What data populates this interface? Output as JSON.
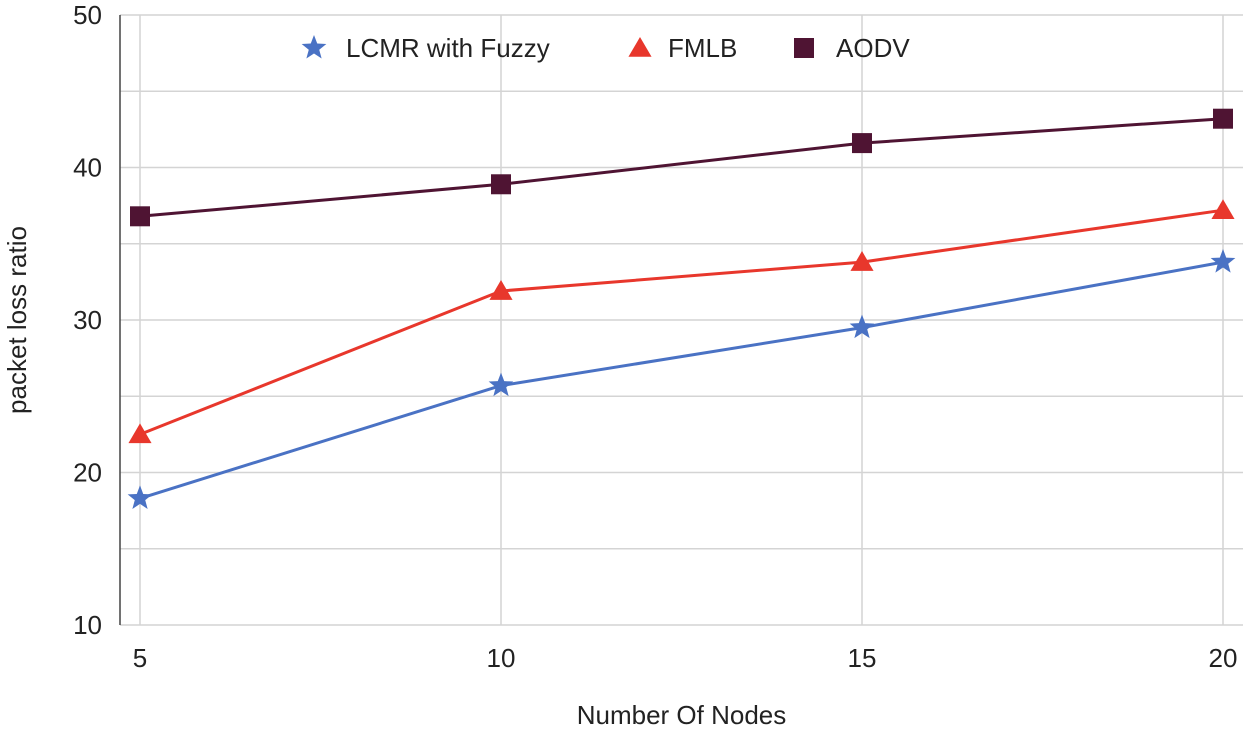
{
  "chart_data": {
    "type": "line",
    "title": "",
    "xlabel": "Number Of Nodes",
    "ylabel": "packet loss ratio",
    "x": [
      5,
      10,
      15,
      20
    ],
    "x_tick_labels": [
      "5",
      "10",
      "15",
      "20"
    ],
    "ylim": [
      10,
      50
    ],
    "y_ticks": [
      10,
      20,
      30,
      40,
      50
    ],
    "y_tick_labels": [
      "10",
      "20",
      "30",
      "40",
      "50"
    ],
    "grid": true,
    "legend_position": "top",
    "series": [
      {
        "name": "LCMR with Fuzzy",
        "marker": "star",
        "color": "#4a72c4",
        "values": [
          18.3,
          25.7,
          29.5,
          33.8
        ]
      },
      {
        "name": "FMLB",
        "marker": "triangle",
        "color": "#e8372c",
        "values": [
          22.5,
          31.9,
          33.8,
          37.2
        ]
      },
      {
        "name": "AODV",
        "marker": "square",
        "color": "#4f1433",
        "values": [
          36.8,
          38.9,
          41.6,
          43.2
        ]
      }
    ]
  }
}
